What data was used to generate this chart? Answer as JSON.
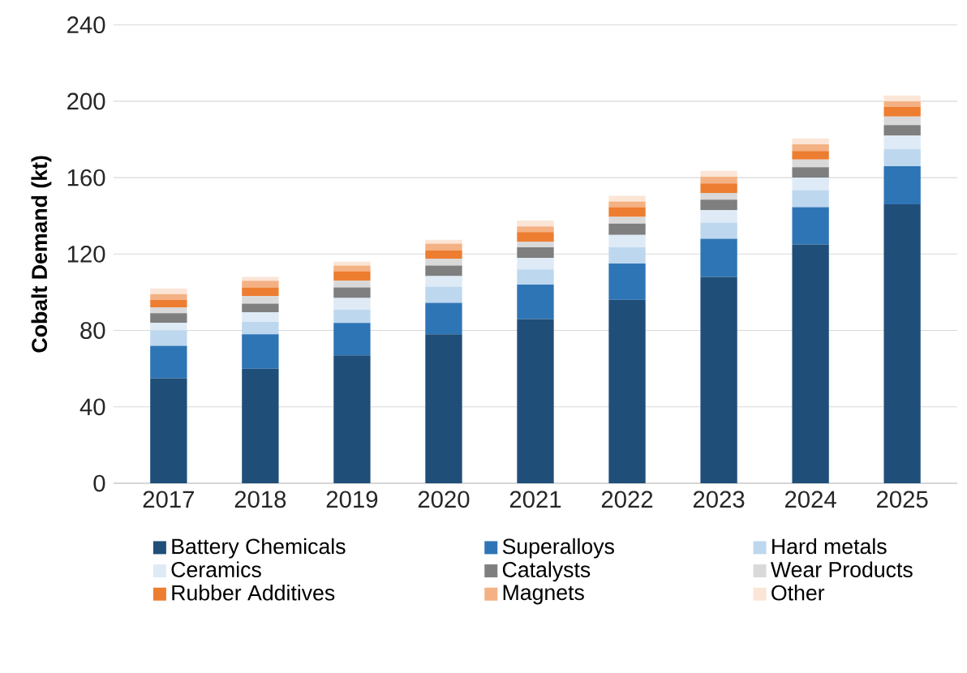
{
  "chart_data": {
    "type": "bar",
    "stacked": true,
    "ylabel": "Cobalt Demand (kt)",
    "categories": [
      "2017",
      "2018",
      "2019",
      "2020",
      "2021",
      "2022",
      "2023",
      "2024",
      "2025"
    ],
    "ylim": [
      0,
      240
    ],
    "yticks": [
      0,
      40,
      80,
      120,
      160,
      200,
      240
    ],
    "grid": "y",
    "legend": "bottom",
    "series": [
      {
        "name": "Battery Chemicals",
        "color": "#1f4e79",
        "values": [
          55,
          60,
          67,
          78,
          86,
          96,
          108,
          125,
          146
        ]
      },
      {
        "name": "Superalloys",
        "color": "#2e75b6",
        "values": [
          17,
          18,
          17,
          16.5,
          18,
          19,
          20,
          19.5,
          20
        ]
      },
      {
        "name": "Hard metals",
        "color": "#bdd7ee",
        "values": [
          8,
          6.5,
          7,
          8.5,
          8,
          8.5,
          8.5,
          9,
          9
        ]
      },
      {
        "name": "Ceramics",
        "color": "#deebf7",
        "values": [
          4,
          5,
          6,
          5.5,
          6,
          6.5,
          6.5,
          6.5,
          7
        ]
      },
      {
        "name": "Catalysts",
        "color": "#7f7f7f",
        "values": [
          5,
          4.5,
          5.5,
          5.5,
          5.5,
          6,
          5.5,
          5.5,
          5.5
        ]
      },
      {
        "name": "Wear Products",
        "color": "#d9d9d9",
        "values": [
          3,
          4,
          3.5,
          3.5,
          3,
          3.5,
          3.5,
          4,
          4.5
        ]
      },
      {
        "name": "Rubber Additives",
        "color": "#ed7d31",
        "values": [
          4,
          4.5,
          5,
          4.5,
          5,
          5,
          5,
          4.5,
          5
        ]
      },
      {
        "name": "Magnets",
        "color": "#f4b183",
        "values": [
          3,
          3.5,
          3,
          3.5,
          3,
          3,
          3.5,
          3.5,
          3
        ]
      },
      {
        "name": "Other",
        "color": "#fbe5d6",
        "values": [
          3,
          2,
          2,
          2,
          3,
          3,
          3,
          3,
          3
        ]
      }
    ]
  }
}
